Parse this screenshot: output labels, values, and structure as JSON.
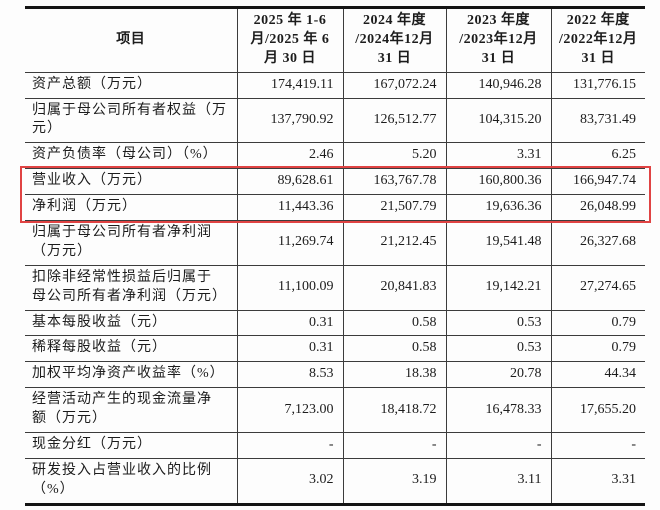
{
  "table": {
    "columns": {
      "item_header": "项目",
      "period_headers": [
        "2025 年 1-6\n月/2025 年 6\n月 30 日",
        "2024 年度\n/2024年12月\n31 日",
        "2023 年度\n/2023年12月\n31 日",
        "2022 年度\n/2022年12月\n31 日"
      ]
    },
    "rows": [
      {
        "label": "资产总额（万元）",
        "values": [
          "174,419.11",
          "167,072.24",
          "140,946.28",
          "131,776.15"
        ],
        "highlighted": false
      },
      {
        "label": "归属于母公司所有者权益（万\n元）",
        "values": [
          "137,790.92",
          "126,512.77",
          "104,315.20",
          "83,731.49"
        ],
        "highlighted": false
      },
      {
        "label": "资产负债率（母公司）（%）",
        "values": [
          "2.46",
          "5.20",
          "3.31",
          "6.25"
        ],
        "highlighted": false
      },
      {
        "label": "营业收入（万元）",
        "values": [
          "89,628.61",
          "163,767.78",
          "160,800.36",
          "166,947.74"
        ],
        "highlighted": true
      },
      {
        "label": "净利润（万元）",
        "values": [
          "11,443.36",
          "21,507.79",
          "19,636.36",
          "26,048.99"
        ],
        "highlighted": true
      },
      {
        "label": "归属于母公司所有者净利润\n（万元）",
        "values": [
          "11,269.74",
          "21,212.45",
          "19,541.48",
          "26,327.68"
        ],
        "highlighted": false
      },
      {
        "label": "扣除非经常性损益后归属于\n母公司所有者净利润（万元）",
        "values": [
          "11,100.09",
          "20,841.83",
          "19,142.21",
          "27,274.65"
        ],
        "highlighted": false
      },
      {
        "label": "基本每股收益（元）",
        "values": [
          "0.31",
          "0.58",
          "0.53",
          "0.79"
        ],
        "highlighted": false
      },
      {
        "label": "稀释每股收益（元）",
        "values": [
          "0.31",
          "0.58",
          "0.53",
          "0.79"
        ],
        "highlighted": false
      },
      {
        "label": "加权平均净资产收益率（%）",
        "values": [
          "8.53",
          "18.38",
          "20.78",
          "44.34"
        ],
        "highlighted": false
      },
      {
        "label": "经营活动产生的现金流量净\n额（万元）",
        "values": [
          "7,123.00",
          "18,418.72",
          "16,478.33",
          "17,655.20"
        ],
        "highlighted": false
      },
      {
        "label": "现金分红（万元）",
        "values": [
          "-",
          "-",
          "-",
          "-"
        ],
        "highlighted": false
      },
      {
        "label": "研发投入占营业收入的比例\n（%）",
        "values": [
          "3.02",
          "3.19",
          "3.11",
          "3.31"
        ],
        "highlighted": false
      }
    ]
  },
  "highlight_box": {
    "color": "#e04343",
    "rows_covered": [
      "营业收入（万元）",
      "净利润（万元）"
    ]
  }
}
